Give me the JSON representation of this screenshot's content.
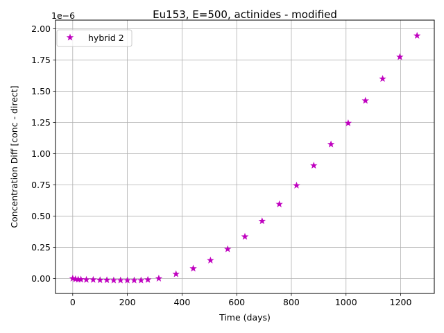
{
  "chart_data": {
    "type": "scatter",
    "title": "Eu153, E=500, actinides - modified",
    "xlabel": "Time (days)",
    "ylabel": "Concentration Diff [conc - direct]",
    "y_offset_label": "1e−6",
    "xlim": [
      -63,
      1323
    ],
    "ylim": [
      -0.12,
      2.07
    ],
    "x_ticks": [
      0,
      200,
      400,
      600,
      800,
      1000,
      1200
    ],
    "y_ticks": [
      0.0,
      0.25,
      0.5,
      0.75,
      1.0,
      1.25,
      1.5,
      1.75,
      2.0
    ],
    "x_tick_labels": [
      "0",
      "200",
      "400",
      "600",
      "800",
      "1000",
      "1200"
    ],
    "y_tick_labels": [
      "0.00",
      "0.25",
      "0.50",
      "0.75",
      "1.00",
      "1.25",
      "1.50",
      "1.75",
      "2.00"
    ],
    "grid": true,
    "legend_position": "top-left",
    "colors": {
      "series": "#bf00bf",
      "grid": "#b0b0b0",
      "axes": "#000000"
    },
    "series": [
      {
        "name": "hybrid 2",
        "marker": "star",
        "x": [
          0,
          10,
          20,
          30,
          50,
          75,
          100,
          125,
          150,
          175,
          200,
          225,
          250,
          275,
          315,
          378,
          441,
          504,
          567,
          630,
          693,
          756,
          819,
          882,
          945,
          1008,
          1071,
          1134,
          1197,
          1260
        ],
        "y": [
          0.0,
          -0.005,
          -0.008,
          -0.008,
          -0.01,
          -0.01,
          -0.013,
          -0.013,
          -0.015,
          -0.015,
          -0.015,
          -0.015,
          -0.015,
          -0.01,
          0.0,
          0.035,
          0.08,
          0.145,
          0.235,
          0.335,
          0.46,
          0.595,
          0.745,
          0.905,
          1.075,
          1.245,
          1.425,
          1.6,
          1.775,
          1.945
        ]
      }
    ]
  }
}
